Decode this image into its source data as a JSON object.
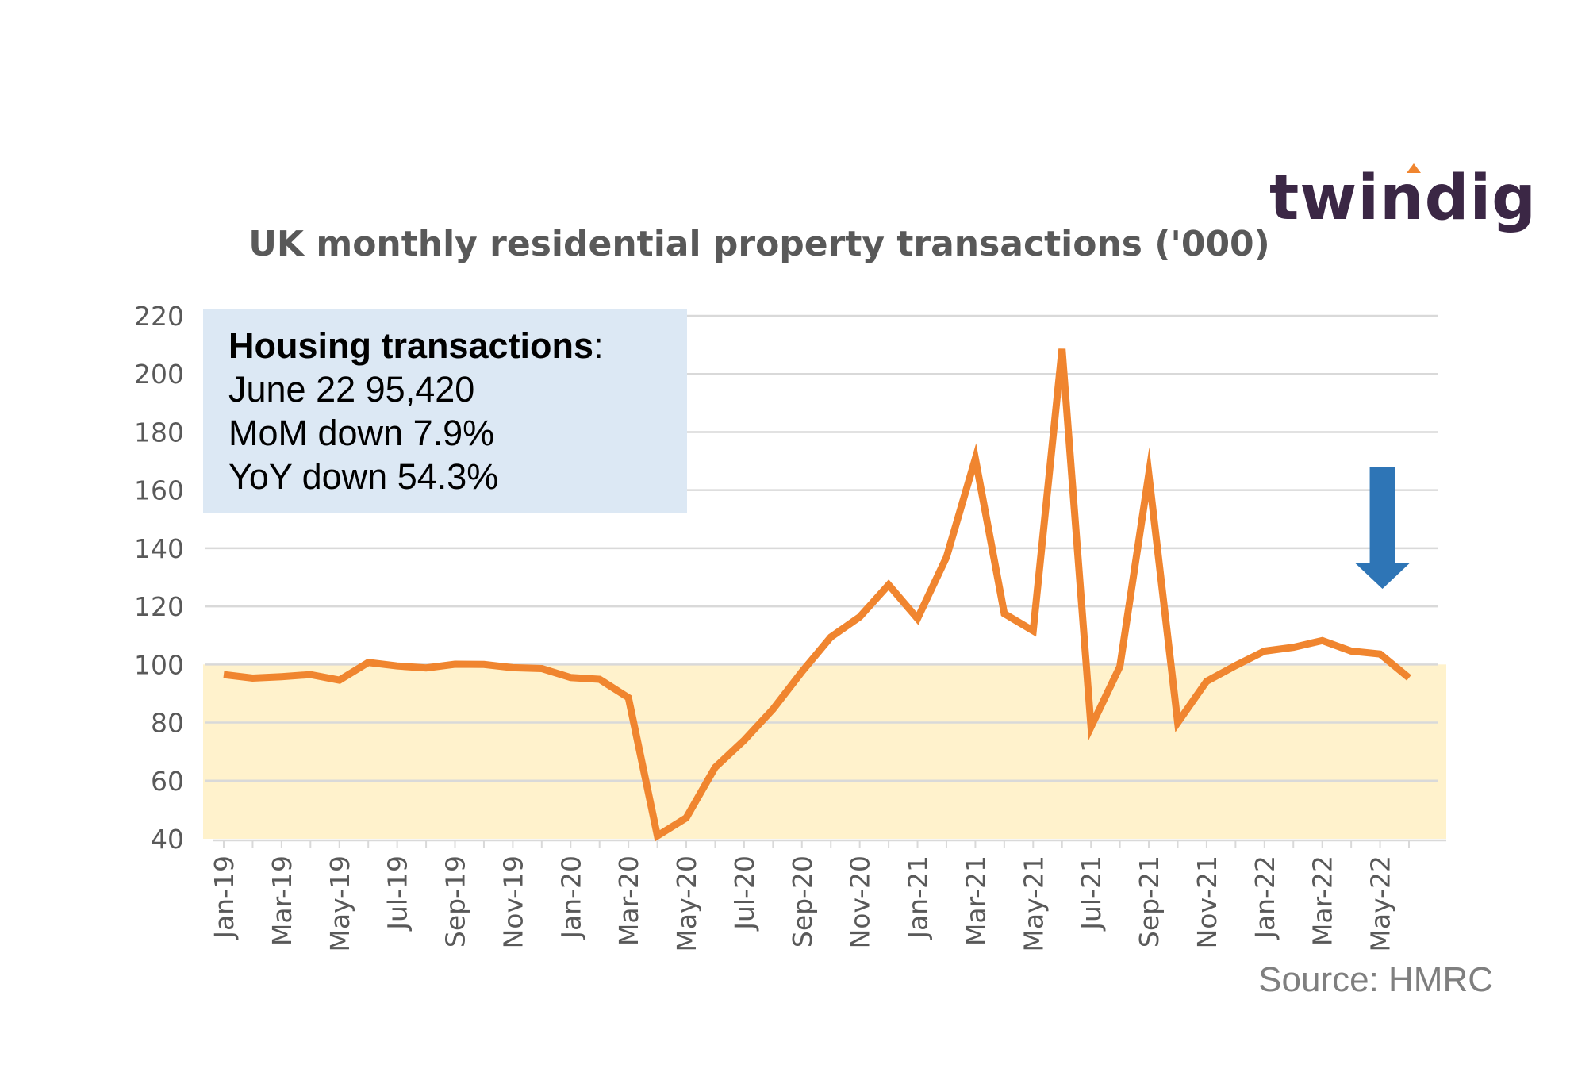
{
  "logo": {
    "text": "twindig"
  },
  "source": "Source: HMRC",
  "info_box": {
    "heading": "Housing transactions",
    "heading_suffix": ":",
    "lines": [
      "June 22 95,420",
      "MoM down 7.9%",
      "YoY down 54.3%"
    ],
    "background_color": "#dce8f4"
  },
  "colors": {
    "line": "#f0852f",
    "band": "#fff2cc",
    "arrow": "#2e75b6",
    "grid": "#d9d9d9",
    "axis_text": "#595959",
    "title": "#595959",
    "logo": "#3b2745"
  },
  "chart_data": {
    "type": "line",
    "title": "UK monthly residential property transactions  ('000)",
    "xlabel": "",
    "ylabel": "",
    "ylim": [
      40,
      220
    ],
    "yticks": [
      40,
      60,
      80,
      100,
      120,
      140,
      160,
      180,
      200,
      220
    ],
    "grid": true,
    "legend": "none",
    "x": [
      "Jan-19",
      "Feb-19",
      "Mar-19",
      "Apr-19",
      "May-19",
      "Jun-19",
      "Jul-19",
      "Aug-19",
      "Sep-19",
      "Oct-19",
      "Nov-19",
      "Dec-19",
      "Jan-20",
      "Feb-20",
      "Mar-20",
      "Apr-20",
      "May-20",
      "Jun-20",
      "Jul-20",
      "Aug-20",
      "Sep-20",
      "Oct-20",
      "Nov-20",
      "Dec-20",
      "Jan-21",
      "Feb-21",
      "Mar-21",
      "Apr-21",
      "May-21",
      "Jun-21",
      "Jul-21",
      "Aug-21",
      "Sep-21",
      "Oct-21",
      "Nov-21",
      "Dec-21",
      "Jan-22",
      "Feb-22",
      "Mar-22",
      "Apr-22",
      "May-22",
      "Jun-22"
    ],
    "xtick_labels": [
      "Jan-19",
      "Mar-19",
      "May-19",
      "Jul-19",
      "Sep-19",
      "Nov-19",
      "Jan-20",
      "Mar-20",
      "May-20",
      "Jul-20",
      "Sep-20",
      "Nov-20",
      "Jan-21",
      "Mar-21",
      "May-21",
      "Jul-21",
      "Sep-21",
      "Nov-21",
      "Jan-22",
      "Mar-22",
      "May-22"
    ],
    "series": [
      {
        "values": [
          96.5,
          95.3,
          95.8,
          96.5,
          94.6,
          100.7,
          99.5,
          98.8,
          100.1,
          100.0,
          98.9,
          98.6,
          95.5,
          94.9,
          88.6,
          41.0,
          47.2,
          64.6,
          73.9,
          84.6,
          97.5,
          109.4,
          116.4,
          127.4,
          115.8,
          136.9,
          170.9,
          117.5,
          111.6,
          208.6,
          78.5,
          99.3,
          165.5,
          80.0,
          94.2,
          99.6,
          104.6,
          105.9,
          108.2,
          104.6,
          103.6,
          95.4
        ]
      }
    ],
    "shaded_band": {
      "from": 40,
      "to": 100
    },
    "annotation": {
      "type": "down-arrow",
      "x": "May-22"
    }
  }
}
